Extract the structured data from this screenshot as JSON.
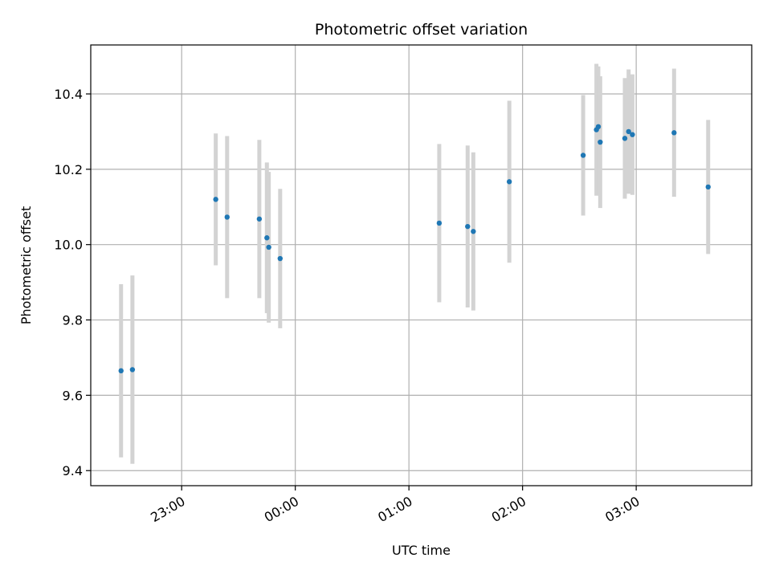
{
  "chart_data": {
    "type": "scatter",
    "title": "Photometric offset variation",
    "xlabel": "UTC time",
    "ylabel": "Photometric offset",
    "x_axis": "time",
    "xlim": [
      "22:12",
      "04:01"
    ],
    "ylim": [
      9.36,
      10.53
    ],
    "grid": true,
    "x_ticks": [
      "23:00",
      "00:00",
      "01:00",
      "02:00",
      "03:00"
    ],
    "y_ticks": [
      "9.4",
      "9.6",
      "9.8",
      "10.0",
      "10.2",
      "10.4"
    ],
    "point_color": "#1f77b4",
    "errorbar_color": "#d3d3d3",
    "points": [
      {
        "x": "22:28",
        "y": 9.665,
        "err": 0.23
      },
      {
        "x": "22:34",
        "y": 9.668,
        "err": 0.25
      },
      {
        "x": "23:18",
        "y": 10.12,
        "err": 0.175
      },
      {
        "x": "23:24",
        "y": 10.073,
        "err": 0.215
      },
      {
        "x": "23:41",
        "y": 10.068,
        "err": 0.21
      },
      {
        "x": "23:45",
        "y": 10.018,
        "err": 0.2
      },
      {
        "x": "23:46",
        "y": 9.993,
        "err": 0.2
      },
      {
        "x": "23:52",
        "y": 9.963,
        "err": 0.185
      },
      {
        "x": "01:16",
        "y": 10.057,
        "err": 0.21
      },
      {
        "x": "01:31",
        "y": 10.048,
        "err": 0.215
      },
      {
        "x": "01:34",
        "y": 10.035,
        "err": 0.21
      },
      {
        "x": "01:53",
        "y": 10.167,
        "err": 0.215
      },
      {
        "x": "02:32",
        "y": 10.237,
        "err": 0.16
      },
      {
        "x": "02:39",
        "y": 10.305,
        "err": 0.175
      },
      {
        "x": "02:40",
        "y": 10.313,
        "err": 0.16
      },
      {
        "x": "02:41",
        "y": 10.272,
        "err": 0.175
      },
      {
        "x": "02:54",
        "y": 10.282,
        "err": 0.16
      },
      {
        "x": "02:56",
        "y": 10.3,
        "err": 0.165
      },
      {
        "x": "02:58",
        "y": 10.292,
        "err": 0.16
      },
      {
        "x": "03:20",
        "y": 10.297,
        "err": 0.17
      },
      {
        "x": "03:38",
        "y": 10.153,
        "err": 0.178
      }
    ]
  }
}
